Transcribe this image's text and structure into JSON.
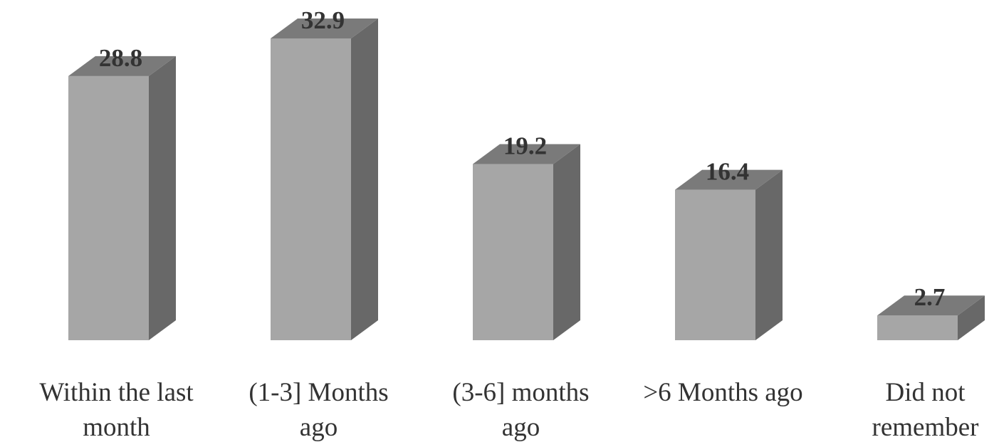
{
  "chart_data": {
    "type": "bar",
    "style": "3d-column",
    "categories": [
      [
        "Within the last",
        "month"
      ],
      [
        "(1-3] Months",
        "ago"
      ],
      [
        "(3-6] months",
        "ago"
      ],
      [
        ">6 Months ago"
      ],
      [
        "Did not",
        "remember"
      ]
    ],
    "values": [
      28.8,
      32.9,
      19.2,
      16.4,
      2.7
    ],
    "value_labels": [
      "28.8",
      "32.9",
      "19.2",
      "16.4",
      "2.7"
    ],
    "title": "",
    "xlabel": "",
    "ylabel": "",
    "ylim": [
      0,
      32.9
    ],
    "grid": false,
    "legend": "none",
    "colors": {
      "front": "#a6a6a6",
      "side": "#686868",
      "top": "#7a7a7a",
      "text": "#333333"
    }
  }
}
